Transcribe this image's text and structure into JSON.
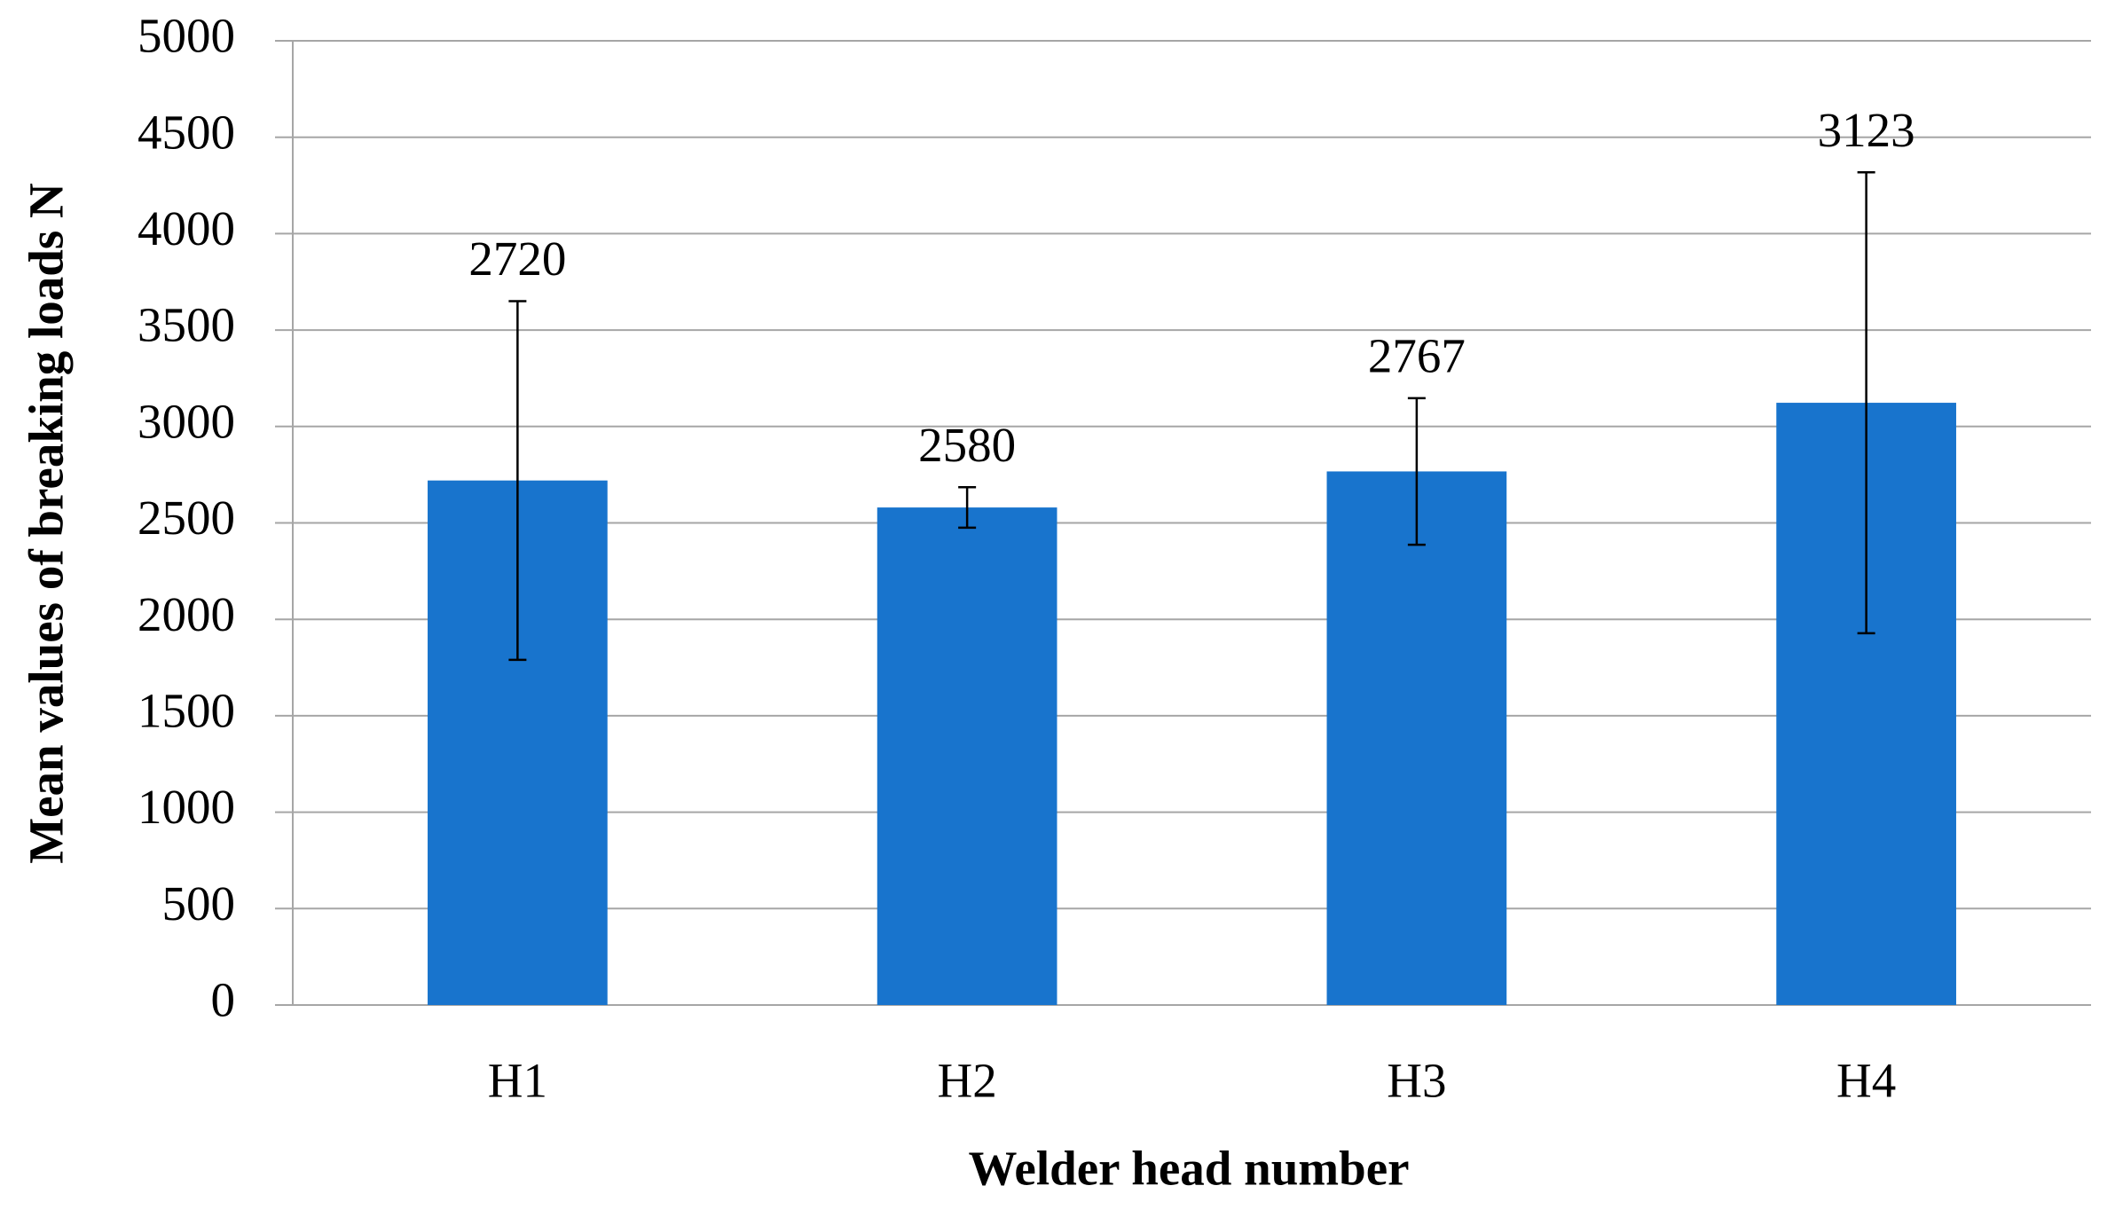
{
  "chart_data": {
    "type": "bar",
    "categories": [
      "H1",
      "H2",
      "H3",
      "H4"
    ],
    "values": [
      2720,
      2580,
      2767,
      3123
    ],
    "errors": [
      930,
      105,
      380,
      1195
    ],
    "color": "#1874cd",
    "xlabel": "Welder head number",
    "ylabel": "Mean values of breaking loads N",
    "ylim": [
      0,
      5000
    ],
    "yticks": [
      0,
      500,
      1000,
      1500,
      2000,
      2500,
      3000,
      3500,
      4000,
      4500,
      5000
    ],
    "grid": true
  }
}
